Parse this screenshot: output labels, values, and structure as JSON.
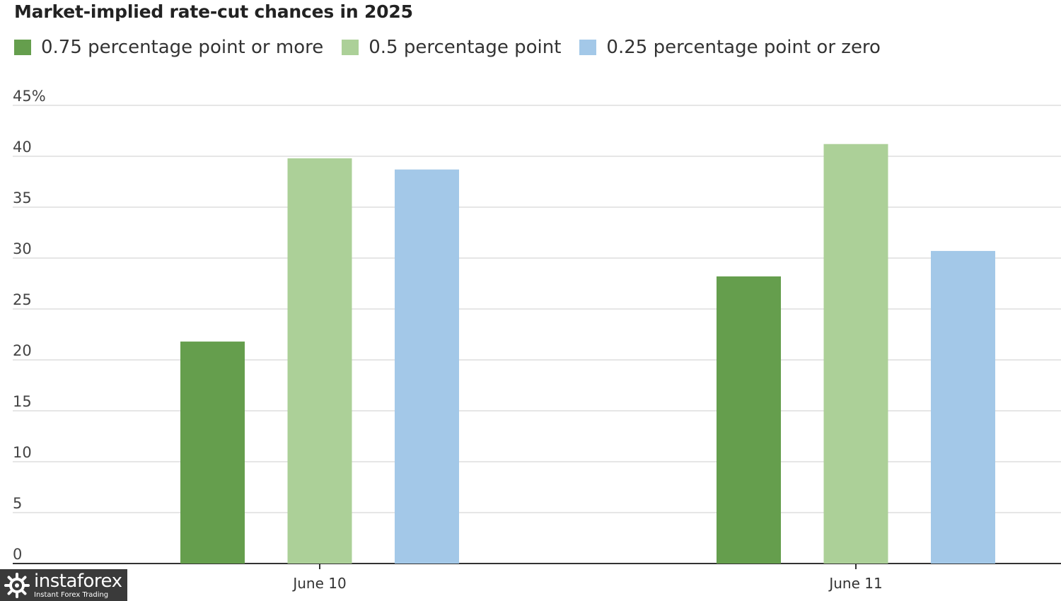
{
  "colors": {
    "dark_green": "#659e4d",
    "light_green": "#acd098",
    "light_blue": "#a3c8e8",
    "grid": "#dddddd",
    "axis": "#333333"
  },
  "logo": {
    "name": "instaforex",
    "tagline": "Instant Forex Trading",
    "icon": "instaforex-logo-icon"
  },
  "chart_data": {
    "type": "bar",
    "title": "Market-implied rate-cut chances in 2025",
    "xlabel": "",
    "ylabel": "",
    "categories": [
      "June 10",
      "June 11"
    ],
    "series": [
      {
        "name": "0.75 percentage point or more",
        "color": "#659e4d",
        "values": [
          21.8,
          28.2
        ]
      },
      {
        "name": "0.5 percentage point",
        "color": "#acd098",
        "values": [
          39.8,
          41.2
        ]
      },
      {
        "name": "0.25 percentage point or zero",
        "color": "#a3c8e8",
        "values": [
          38.7,
          30.7
        ]
      }
    ],
    "ylim": [
      0,
      45
    ],
    "yticks": [
      "0",
      "5",
      "10",
      "15",
      "20",
      "25",
      "30",
      "35",
      "40",
      "45%"
    ],
    "ytick_values": [
      0,
      5,
      10,
      15,
      20,
      25,
      30,
      35,
      40,
      45
    ],
    "grid": true,
    "legend_position": "top-left"
  }
}
